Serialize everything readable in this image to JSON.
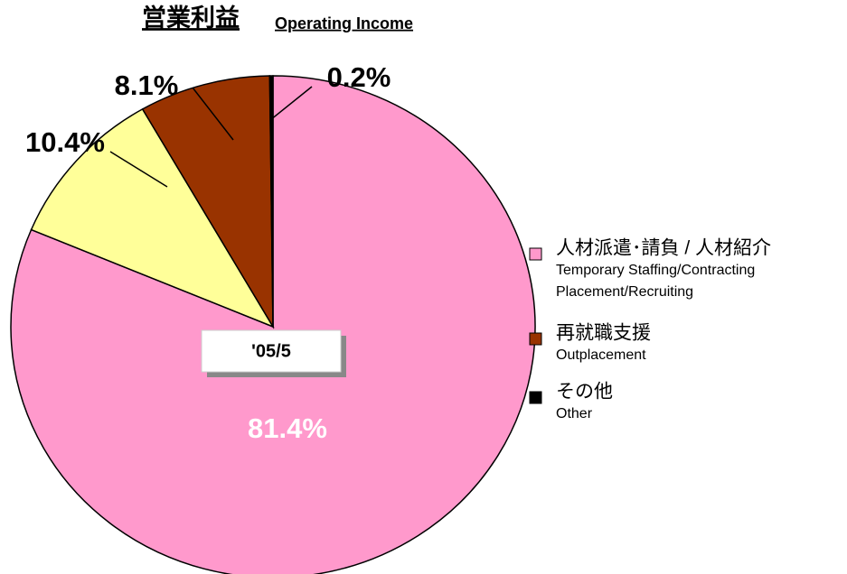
{
  "chart_data": {
    "type": "pie",
    "title": "営業利益",
    "subtitle": "Operating Income",
    "center_label": "'05/5",
    "categories": [
      "人材派遣･請負 / 人材紹介",
      null,
      "再就職支援",
      "その他"
    ],
    "category_subtitles": [
      [
        "Temporary Staffing/Contracting",
        "Placement/Recruiting"
      ],
      null,
      [
        "Outplacement"
      ],
      [
        "Other"
      ]
    ],
    "values": [
      81.4,
      10.4,
      8.1,
      0.2
    ],
    "value_labels": [
      "81.4%",
      "10.4%",
      "8.1%",
      "0.2%"
    ],
    "colors": [
      "#ff99cc",
      "#ffff99",
      "#993300",
      "#000000"
    ],
    "legend": "right"
  }
}
